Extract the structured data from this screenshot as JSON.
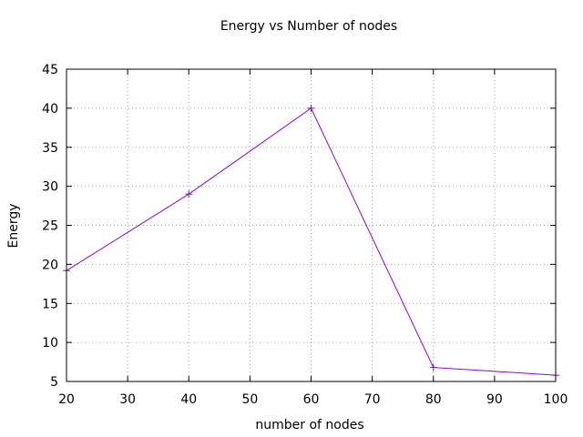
{
  "chart_data": {
    "type": "line",
    "title": "Energy vs Number of nodes",
    "xlabel": "number of nodes",
    "ylabel": "Energy",
    "xlim": [
      20,
      100
    ],
    "ylim": [
      5,
      45
    ],
    "xticks": [
      20,
      30,
      40,
      50,
      60,
      70,
      80,
      90,
      100
    ],
    "yticks": [
      5,
      10,
      15,
      20,
      25,
      30,
      35,
      40,
      45
    ],
    "grid": true,
    "legend": "none",
    "series": [
      {
        "x": [
          20,
          40,
          60,
          80,
          100
        ],
        "y": [
          19.2,
          29.0,
          40.0,
          6.8,
          5.8
        ],
        "color": "#9400d3",
        "marker": "plus"
      }
    ]
  }
}
